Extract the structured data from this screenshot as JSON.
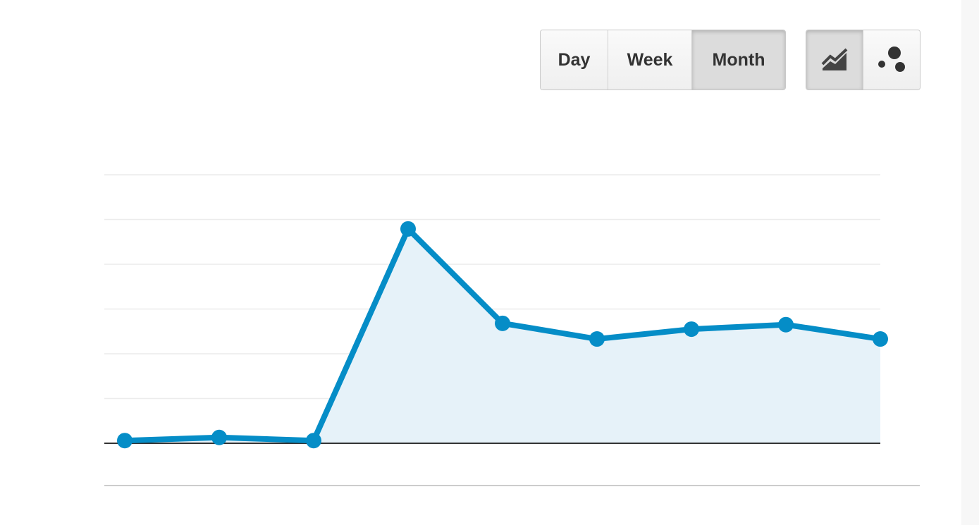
{
  "toolbar": {
    "periods": [
      "Day",
      "Week",
      "Month"
    ],
    "active_period": 2,
    "active_view": 0
  },
  "chart_data": {
    "type": "line",
    "categories": [
      null,
      null,
      null,
      null,
      null,
      null,
      null,
      null,
      null
    ],
    "series": [
      {
        "color": "#058dc7",
        "fill": "#e6f2f9",
        "values": [
          0.06,
          0.13,
          0.06,
          4.79,
          2.68,
          2.33,
          2.55,
          2.65,
          2.33
        ]
      }
    ],
    "ylim": [
      0,
      6
    ],
    "yticks": [
      1,
      2,
      3,
      4,
      5,
      6
    ],
    "grid": true
  }
}
